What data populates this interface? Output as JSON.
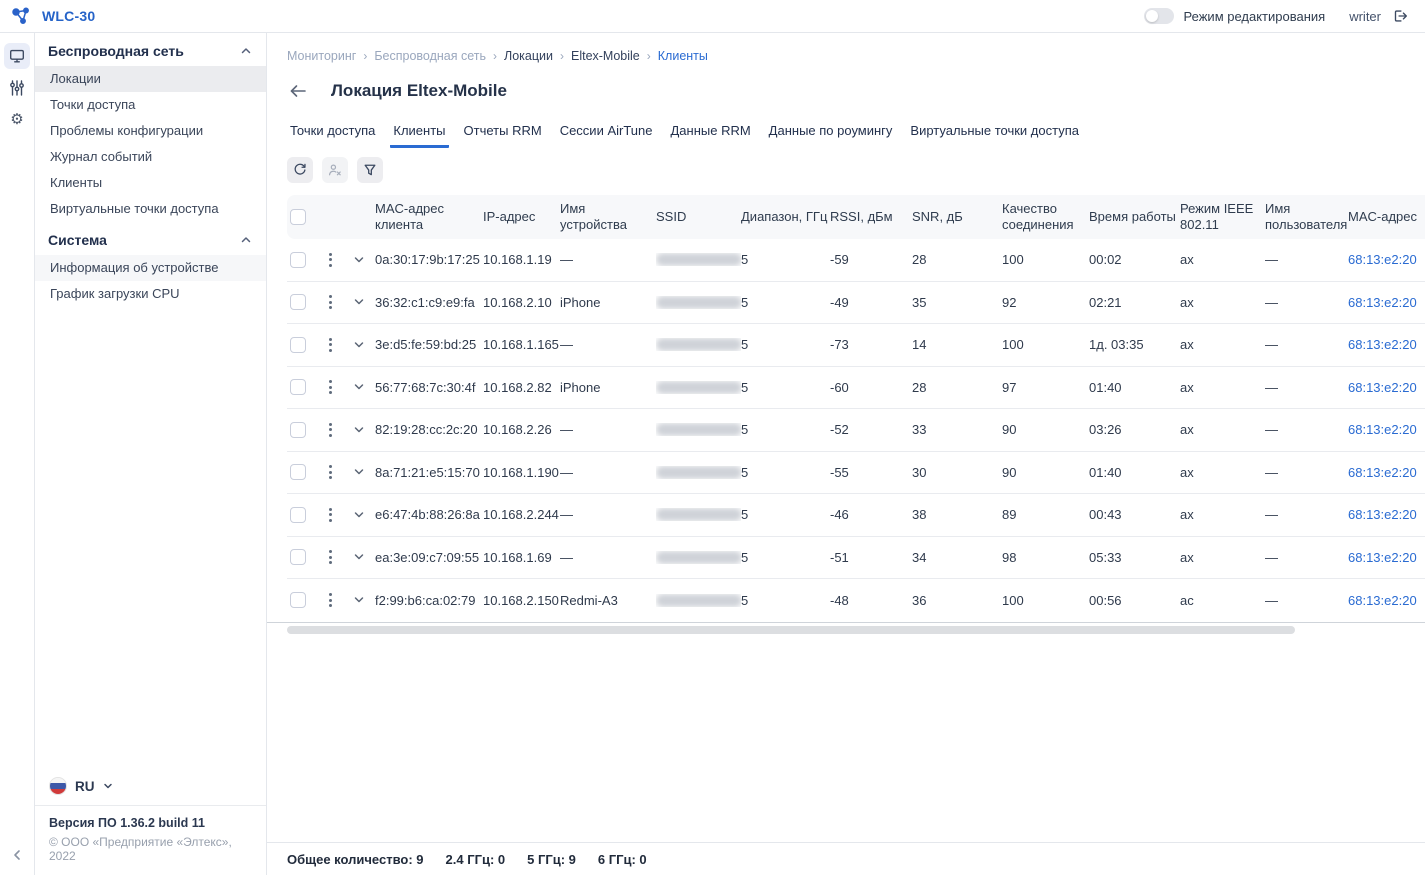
{
  "header": {
    "app_title": "WLC-30",
    "edit_mode_label": "Режим редактирования",
    "edit_mode_on": false,
    "username": "writer"
  },
  "icon_rail": {
    "items": [
      {
        "icon": "monitor",
        "active": true
      },
      {
        "icon": "sliders",
        "active": false
      },
      {
        "icon": "gear",
        "active": false
      }
    ]
  },
  "sidebar": {
    "sections": [
      {
        "title": "Беспроводная сеть",
        "items": [
          {
            "label": "Локации",
            "active": true
          },
          {
            "label": "Точки доступа"
          },
          {
            "label": "Проблемы конфигурации"
          },
          {
            "label": "Журнал событий"
          },
          {
            "label": "Клиенты"
          },
          {
            "label": "Виртуальные точки доступа"
          }
        ]
      },
      {
        "title": "Система",
        "items": [
          {
            "label": "Информация об устройстве",
            "subtle": true
          },
          {
            "label": "График загрузки CPU"
          }
        ]
      }
    ],
    "language": "RU",
    "version": "Версия ПО 1.36.2 build 11",
    "copyright": "© ООО «Предприятие «Элтекс», 2022"
  },
  "breadcrumbs": [
    {
      "label": "Мониторинг",
      "tone": "muted"
    },
    {
      "label": "Беспроводная сеть",
      "tone": "muted"
    },
    {
      "label": "Локации",
      "tone": "dark"
    },
    {
      "label": "Eltex-Mobile",
      "tone": "dark"
    },
    {
      "label": "Клиенты",
      "tone": "active"
    }
  ],
  "page": {
    "title": "Локация Eltex-Mobile"
  },
  "tabs": [
    {
      "label": "Точки доступа"
    },
    {
      "label": "Клиенты",
      "active": true
    },
    {
      "label": "Отчеты RRM"
    },
    {
      "label": "Сессии AirTune"
    },
    {
      "label": "Данные RRM"
    },
    {
      "label": "Данные по роумингу"
    },
    {
      "label": "Виртуальные точки доступа"
    }
  ],
  "toolbar": {
    "buttons": [
      {
        "icon": "refresh",
        "disabled": false
      },
      {
        "icon": "disconnect-user",
        "disabled": true
      },
      {
        "icon": "filter",
        "disabled": false
      }
    ]
  },
  "table": {
    "columns": [
      {
        "key": "mac",
        "label": "MAC-адрес клиента"
      },
      {
        "key": "ip",
        "label": "IP-адрес"
      },
      {
        "key": "device",
        "label": "Имя устройства"
      },
      {
        "key": "ssid",
        "label": "SSID",
        "redacted": true
      },
      {
        "key": "band",
        "label": "Диапазон, ГГц"
      },
      {
        "key": "rssi",
        "label": "RSSI, дБм"
      },
      {
        "key": "snr",
        "label": "SNR, дБ"
      },
      {
        "key": "quality",
        "label": "Качество соединения"
      },
      {
        "key": "uptime",
        "label": "Время работы"
      },
      {
        "key": "mode",
        "label": "Режим IEEE 802.11"
      },
      {
        "key": "user",
        "label": "Имя пользователя"
      },
      {
        "key": "ap_mac",
        "label": "MAC-адрес",
        "link": true
      }
    ],
    "rows": [
      {
        "mac": "0a:30:17:9b:17:25",
        "ip": "10.168.1.19",
        "device": "—",
        "band": "5",
        "rssi": "-59",
        "snr": "28",
        "quality": "100",
        "uptime": "00:02",
        "mode": "ax",
        "user": "—",
        "ap_mac": "68:13:e2:20"
      },
      {
        "mac": "36:32:c1:c9:e9:fa",
        "ip": "10.168.2.10",
        "device": "iPhone",
        "band": "5",
        "rssi": "-49",
        "snr": "35",
        "quality": "92",
        "uptime": "02:21",
        "mode": "ax",
        "user": "—",
        "ap_mac": "68:13:e2:20"
      },
      {
        "mac": "3e:d5:fe:59:bd:25",
        "ip": "10.168.1.165",
        "device": "—",
        "band": "5",
        "rssi": "-73",
        "snr": "14",
        "quality": "100",
        "uptime": "1д. 03:35",
        "mode": "ax",
        "user": "—",
        "ap_mac": "68:13:e2:20"
      },
      {
        "mac": "56:77:68:7c:30:4f",
        "ip": "10.168.2.82",
        "device": "iPhone",
        "band": "5",
        "rssi": "-60",
        "snr": "28",
        "quality": "97",
        "uptime": "01:40",
        "mode": "ax",
        "user": "—",
        "ap_mac": "68:13:e2:20"
      },
      {
        "mac": "82:19:28:cc:2c:20",
        "ip": "10.168.2.26",
        "device": "—",
        "band": "5",
        "rssi": "-52",
        "snr": "33",
        "quality": "90",
        "uptime": "03:26",
        "mode": "ax",
        "user": "—",
        "ap_mac": "68:13:e2:20"
      },
      {
        "mac": "8a:71:21:e5:15:70",
        "ip": "10.168.1.190",
        "device": "—",
        "band": "5",
        "rssi": "-55",
        "snr": "30",
        "quality": "90",
        "uptime": "01:40",
        "mode": "ax",
        "user": "—",
        "ap_mac": "68:13:e2:20"
      },
      {
        "mac": "e6:47:4b:88:26:8a",
        "ip": "10.168.2.244",
        "device": "—",
        "band": "5",
        "rssi": "-46",
        "snr": "38",
        "quality": "89",
        "uptime": "00:43",
        "mode": "ax",
        "user": "—",
        "ap_mac": "68:13:e2:20"
      },
      {
        "mac": "ea:3e:09:c7:09:55",
        "ip": "10.168.1.69",
        "device": "—",
        "band": "5",
        "rssi": "-51",
        "snr": "34",
        "quality": "98",
        "uptime": "05:33",
        "mode": "ax",
        "user": "—",
        "ap_mac": "68:13:e2:20"
      },
      {
        "mac": "f2:99:b6:ca:02:79",
        "ip": "10.168.2.150",
        "device": "Redmi-A3",
        "band": "5",
        "rssi": "-48",
        "snr": "36",
        "quality": "100",
        "uptime": "00:56",
        "mode": "ac",
        "user": "—",
        "ap_mac": "68:13:e2:20"
      }
    ]
  },
  "status_bar": {
    "counts": [
      {
        "label": "Общее количество",
        "value": "9"
      },
      {
        "label": "2.4 ГГц",
        "value": "0"
      },
      {
        "label": "5 ГГц",
        "value": "9"
      },
      {
        "label": "6 ГГц",
        "value": "0"
      }
    ]
  },
  "colors": {
    "accent": "#2a6bd2",
    "link": "#2a6bd2",
    "active_row_bg": "#ebecef"
  }
}
